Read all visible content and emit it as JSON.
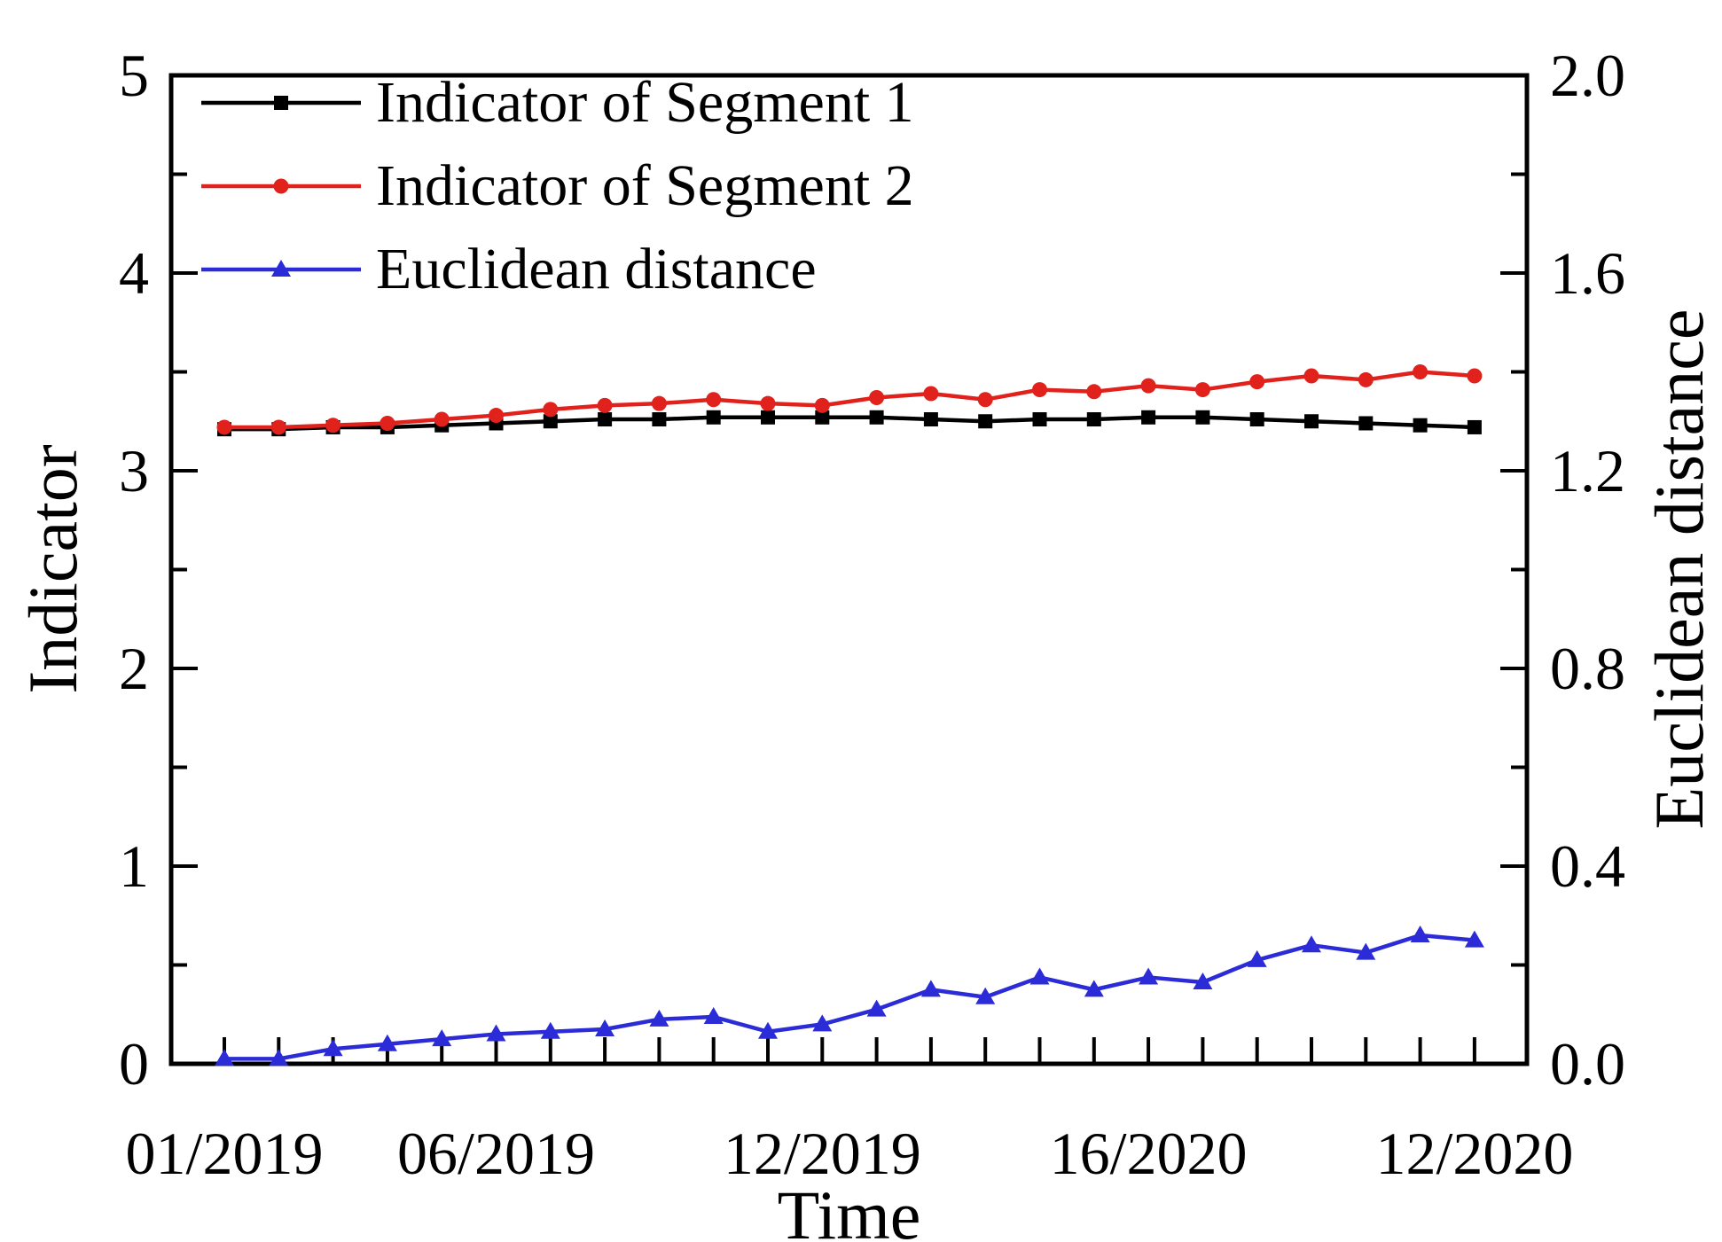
{
  "figure": {
    "background": "#ffffff",
    "frame_color": "#000000"
  },
  "chart_data": {
    "type": "line",
    "title": "",
    "xlabel": "Time",
    "ylabel_left": "Indicator",
    "ylabel_right": "Euclidean distance",
    "grid": false,
    "legend_position": "top-left-inside",
    "n_points": 24,
    "x_tick_labels": [
      {
        "i": 0,
        "label": "01/2019"
      },
      {
        "i": 5,
        "label": "06/2019"
      },
      {
        "i": 11,
        "label": "12/2019"
      },
      {
        "i": 17,
        "label": "16/2020"
      },
      {
        "i": 23,
        "label": "12/2020"
      }
    ],
    "left_axis": {
      "min": 0,
      "max": 5,
      "major_ticks": [
        {
          "v": 0,
          "label": "0"
        },
        {
          "v": 1,
          "label": "1"
        },
        {
          "v": 2,
          "label": "2"
        },
        {
          "v": 3,
          "label": "3"
        },
        {
          "v": 4,
          "label": "4"
        },
        {
          "v": 5,
          "label": "5"
        }
      ],
      "minor_ticks": [
        0.5,
        1.5,
        2.5,
        3.5,
        4.5
      ]
    },
    "right_axis": {
      "min": 0,
      "max": 2,
      "major_ticks": [
        {
          "v": 0.0,
          "label": "0.0"
        },
        {
          "v": 0.4,
          "label": "0.4"
        },
        {
          "v": 0.8,
          "label": "0.8"
        },
        {
          "v": 1.2,
          "label": "1.2"
        },
        {
          "v": 1.6,
          "label": "1.6"
        },
        {
          "v": 2.0,
          "label": "2.0"
        }
      ],
      "minor_ticks": [
        0.2,
        0.6,
        1.0,
        1.4,
        1.8
      ]
    },
    "series": [
      {
        "name": "Indicator of Segment 1",
        "axis": "left",
        "color": "#000000",
        "marker": "square",
        "values": [
          3.21,
          3.21,
          3.22,
          3.22,
          3.23,
          3.24,
          3.25,
          3.26,
          3.26,
          3.27,
          3.27,
          3.27,
          3.27,
          3.26,
          3.25,
          3.26,
          3.26,
          3.27,
          3.27,
          3.26,
          3.25,
          3.24,
          3.23,
          3.22
        ]
      },
      {
        "name": "Indicator of Segment 2",
        "axis": "left",
        "color": "#e0211c",
        "marker": "circle",
        "values": [
          3.22,
          3.22,
          3.23,
          3.24,
          3.26,
          3.28,
          3.31,
          3.33,
          3.34,
          3.36,
          3.34,
          3.33,
          3.37,
          3.39,
          3.36,
          3.41,
          3.4,
          3.43,
          3.41,
          3.45,
          3.48,
          3.46,
          3.5,
          3.48
        ]
      },
      {
        "name": "Euclidean distance",
        "axis": "right",
        "color": "#2b2bd8",
        "marker": "triangle",
        "values": [
          0.01,
          0.01,
          0.03,
          0.04,
          0.05,
          0.06,
          0.065,
          0.07,
          0.09,
          0.095,
          0.065,
          0.08,
          0.11,
          0.15,
          0.135,
          0.175,
          0.15,
          0.175,
          0.165,
          0.21,
          0.24,
          0.225,
          0.26,
          0.25
        ]
      }
    ]
  }
}
